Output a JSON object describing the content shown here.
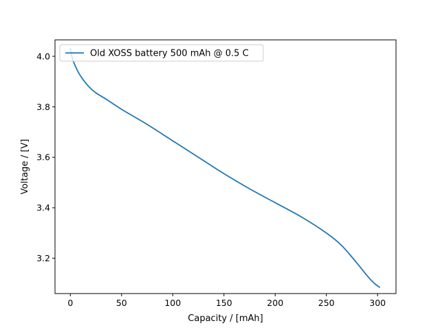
{
  "chart_data": {
    "type": "line",
    "title": "",
    "xlabel": "Capacity / [mAh]",
    "ylabel": "Voltage / [V]",
    "xlim": [
      -15,
      318
    ],
    "ylim": [
      3.06,
      4.065
    ],
    "xticks": [
      0,
      50,
      100,
      150,
      200,
      250,
      300
    ],
    "yticks": [
      3.2,
      3.4,
      3.6,
      3.8,
      4.0
    ],
    "x_tick_labels": [
      "0",
      "50",
      "100",
      "150",
      "200",
      "250",
      "300"
    ],
    "y_tick_labels": [
      "3.2",
      "3.4",
      "3.6",
      "3.8",
      "4.0"
    ],
    "grid": false,
    "legend_position": "top-left",
    "series": [
      {
        "name": "Old XOSS battery 500 mAh @ 0.5 C",
        "color": "#1f77b4",
        "x": [
          0,
          2,
          5,
          8,
          12,
          18,
          25,
          35,
          50,
          75,
          100,
          125,
          150,
          175,
          200,
          225,
          250,
          265,
          280,
          290,
          297,
          302
        ],
        "y": [
          4.03,
          3.99,
          3.96,
          3.935,
          3.91,
          3.88,
          3.855,
          3.83,
          3.79,
          3.73,
          3.665,
          3.6,
          3.535,
          3.475,
          3.42,
          3.365,
          3.3,
          3.25,
          3.18,
          3.13,
          3.1,
          3.085
        ]
      }
    ]
  }
}
